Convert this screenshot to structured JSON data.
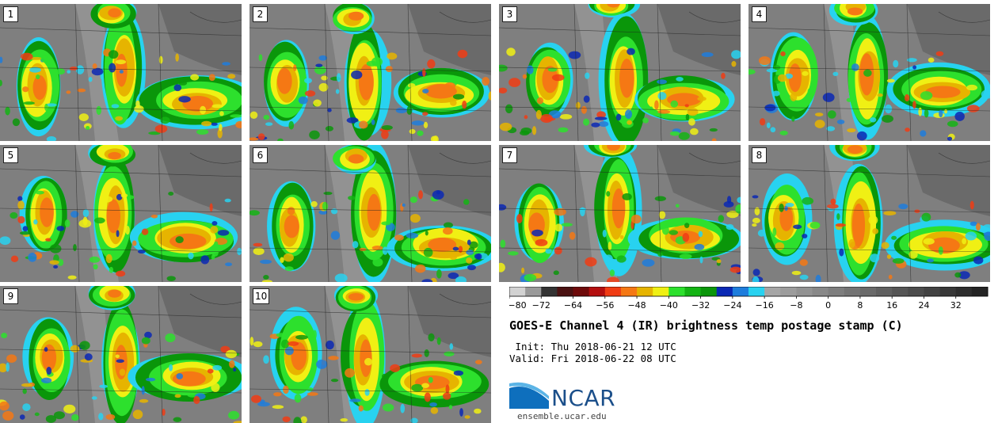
{
  "panels": [
    {
      "label": "1"
    },
    {
      "label": "2"
    },
    {
      "label": "3"
    },
    {
      "label": "4"
    },
    {
      "label": "5"
    },
    {
      "label": "6"
    },
    {
      "label": "7"
    },
    {
      "label": "8"
    },
    {
      "label": "9"
    },
    {
      "label": "10"
    }
  ],
  "title": "GOES-E Channel 4 (IR) brightness temp postage stamp (C)",
  "init": " Init: Thu 2018-06-21 12 UTC",
  "valid": "Valid: Fri 2018-06-22 08 UTC",
  "logo": {
    "text": "NCAR",
    "url": "ensemble.ucar.edu"
  },
  "chart_data": {
    "type": "heatmap",
    "title": "GOES-E Channel 4 (IR) brightness temp postage stamp (C)",
    "colorbar": {
      "range": [
        -80,
        40
      ],
      "ticks": [
        -80,
        -72,
        -64,
        -56,
        -48,
        -40,
        -32,
        -24,
        -16,
        -8,
        0,
        8,
        16,
        24,
        32
      ],
      "tick_labels": [
        "−80",
        "−72",
        "−64",
        "−56",
        "−48",
        "−40",
        "−32",
        "−24",
        "−16",
        "−8",
        "0",
        "8",
        "16",
        "24",
        "32"
      ],
      "colors": [
        "#d2d2d2",
        "#9a9a9a",
        "#333333",
        "#4a1212",
        "#6e0a0a",
        "#b40f0f",
        "#f03c14",
        "#f57814",
        "#e6b400",
        "#f0f014",
        "#2de02d",
        "#14b414",
        "#0a960a",
        "#0a28b4",
        "#1e7ddc",
        "#28d2f0",
        "#a6a6a6",
        "#9c9c9c",
        "#929292",
        "#888888",
        "#7e7e7e",
        "#747474",
        "#6a6a6a",
        "#606060",
        "#565656",
        "#4c4c4c",
        "#424242",
        "#383838",
        "#2e2e2e",
        "#242424"
      ]
    },
    "members": [
      "1",
      "2",
      "3",
      "4",
      "5",
      "6",
      "7",
      "8",
      "9",
      "10"
    ]
  }
}
